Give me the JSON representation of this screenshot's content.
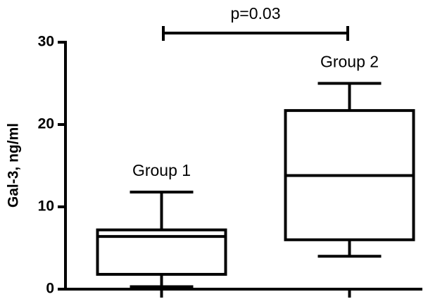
{
  "chart_data": {
    "type": "box",
    "y_label": "Gal-3, ng/ml",
    "annotation": "p=0.03",
    "categories": [
      "Group 1",
      "Group 2"
    ],
    "min": [
      0.3,
      4.0
    ],
    "q1": [
      1.8,
      6.0
    ],
    "median": [
      6.4,
      13.8
    ],
    "q3": [
      7.2,
      21.7
    ],
    "max": [
      11.8,
      25.0
    ],
    "color": "#000000",
    "ylim": [
      0,
      30
    ],
    "yticks": [
      0,
      10,
      20,
      30
    ]
  }
}
